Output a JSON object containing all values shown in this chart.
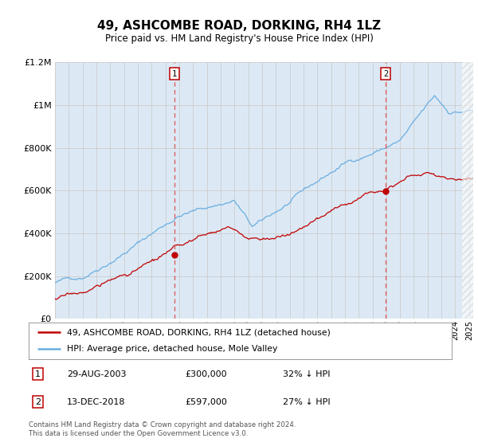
{
  "title": "49, ASHCOMBE ROAD, DORKING, RH4 1LZ",
  "subtitle": "Price paid vs. HM Land Registry's House Price Index (HPI)",
  "legend_entry1": "49, ASHCOMBE ROAD, DORKING, RH4 1LZ (detached house)",
  "legend_entry2": "HPI: Average price, detached house, Mole Valley",
  "annotation1_label": "1",
  "annotation1_date": "29-AUG-2003",
  "annotation1_price": "£300,000",
  "annotation1_hpi": "32% ↓ HPI",
  "annotation1_year": 2003.65,
  "annotation1_value": 300000,
  "annotation2_label": "2",
  "annotation2_date": "13-DEC-2018",
  "annotation2_price": "£597,000",
  "annotation2_hpi": "27% ↓ HPI",
  "annotation2_year": 2018.95,
  "annotation2_value": 597000,
  "footer": "Contains HM Land Registry data © Crown copyright and database right 2024.\nThis data is licensed under the Open Government Licence v3.0.",
  "hpi_color": "#6aaee0",
  "price_color": "#c00000",
  "vline_color": "#e06060",
  "bg_color": "#dce9f5",
  "plot_bg": "#ffffff",
  "grid_color": "#cccccc",
  "hatch_color": "#cccccc",
  "ylim_max": 1200000,
  "ylim_min": 0,
  "xmin": 1995,
  "xmax": 2025.3,
  "hatch_start": 2024.5
}
